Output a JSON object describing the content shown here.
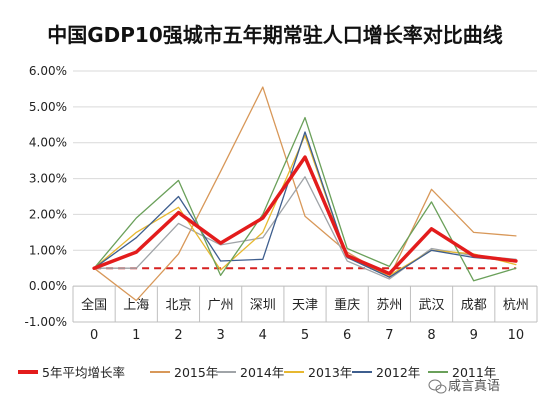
{
  "chart_data": {
    "type": "line",
    "title": "中国GDP10强城市五年期常驻人口增长率对比曲线",
    "x": [
      0,
      1,
      2,
      3,
      4,
      5,
      6,
      7,
      8,
      9,
      10
    ],
    "x_tick_labels": [
      "0",
      "1",
      "2",
      "3",
      "4",
      "5",
      "6",
      "7",
      "8",
      "9",
      "10"
    ],
    "categories": [
      "全国",
      "上海",
      "北京",
      "广州",
      "深圳",
      "天津",
      "重庆",
      "苏州",
      "武汉",
      "成都",
      "杭州"
    ],
    "y_tick_labels": [
      "6.00%",
      "5.00%",
      "4.00%",
      "3.00%",
      "2.00%",
      "1.00%",
      "0.00%",
      "-1.00%"
    ],
    "ylim": [
      -1.0,
      6.0
    ],
    "grid": "horizontal",
    "legend": "bottom",
    "series": [
      {
        "name": "5年平均增长率",
        "color": "#e31c1c",
        "width": 3.5,
        "values": [
          0.5,
          0.95,
          2.05,
          1.2,
          1.9,
          3.6,
          0.85,
          0.35,
          1.6,
          0.85,
          0.7
        ]
      },
      {
        "name": "2015年",
        "color": "#d89859",
        "width": 1.3,
        "values": [
          0.5,
          -0.4,
          0.9,
          3.2,
          5.55,
          1.95,
          0.95,
          0.25,
          2.7,
          1.5,
          1.4
        ]
      },
      {
        "name": "2014年",
        "color": "#a0a4a8",
        "width": 1.3,
        "values": [
          0.5,
          0.5,
          1.75,
          1.15,
          1.35,
          3.05,
          0.7,
          0.2,
          1.05,
          0.85,
          0.75
        ]
      },
      {
        "name": "2013年",
        "color": "#e7b830",
        "width": 1.3,
        "values": [
          0.5,
          1.5,
          2.2,
          0.45,
          1.5,
          4.2,
          0.8,
          0.3,
          1.0,
          0.9,
          0.6
        ]
      },
      {
        "name": "2012年",
        "color": "#3e5e8e",
        "width": 1.3,
        "values": [
          0.5,
          1.35,
          2.5,
          0.7,
          0.75,
          4.3,
          0.8,
          0.25,
          1.0,
          0.8,
          0.7
        ]
      },
      {
        "name": "2011年",
        "color": "#6aa05a",
        "width": 1.3,
        "values": [
          0.5,
          1.9,
          2.95,
          0.3,
          2.0,
          4.7,
          1.05,
          0.55,
          2.35,
          0.15,
          0.5
        ]
      }
    ],
    "reference_line": {
      "value": 0.5,
      "color": "#d62020",
      "style": "dashed"
    }
  },
  "watermark": {
    "text": "咸言真语",
    "icon": "wechat-logo-icon"
  }
}
